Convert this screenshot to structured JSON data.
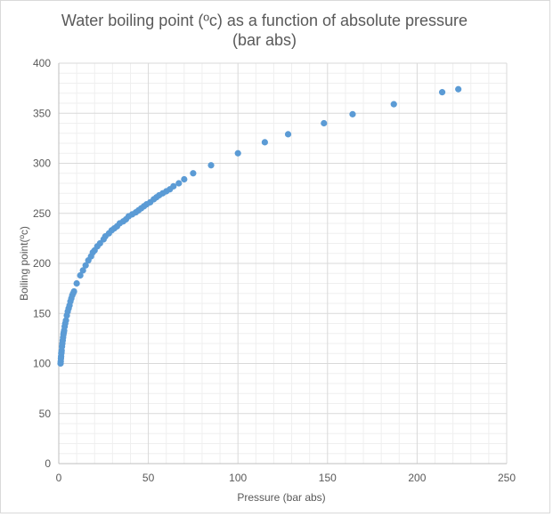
{
  "chart_data": {
    "type": "scatter",
    "title_lines": [
      "Water boiling point (ºc) as a function of absolute pressure",
      "(bar abs)"
    ],
    "xlabel": "Pressure (bar abs)",
    "ylabel": "Boiling point(ºc)",
    "xlim": [
      0,
      250
    ],
    "ylim": [
      0,
      400
    ],
    "xticks": [
      0,
      50,
      100,
      150,
      200,
      250
    ],
    "yticks": [
      0,
      50,
      100,
      150,
      200,
      250,
      300,
      350,
      400
    ],
    "grid": true,
    "marker_color": "#5b9bd5",
    "grid_major_color": "#d9d9d9",
    "grid_minor_color": "#efefef",
    "points": [
      [
        1.0,
        100
      ],
      [
        1.1,
        102
      ],
      [
        1.2,
        105
      ],
      [
        1.3,
        107
      ],
      [
        1.4,
        110
      ],
      [
        1.5,
        111
      ],
      [
        1.6,
        113
      ],
      [
        1.8,
        117
      ],
      [
        2.0,
        120
      ],
      [
        2.2,
        123
      ],
      [
        2.4,
        126
      ],
      [
        2.6,
        129
      ],
      [
        2.8,
        131
      ],
      [
        3.0,
        133
      ],
      [
        3.3,
        137
      ],
      [
        3.6,
        140
      ],
      [
        4.0,
        143
      ],
      [
        4.5,
        148
      ],
      [
        5.0,
        152
      ],
      [
        5.5,
        155
      ],
      [
        6.0,
        158
      ],
      [
        6.5,
        162
      ],
      [
        7.0,
        165
      ],
      [
        7.5,
        168
      ],
      [
        8.0,
        170
      ],
      [
        8.5,
        172
      ],
      [
        10,
        180
      ],
      [
        12,
        188
      ],
      [
        13.5,
        193
      ],
      [
        15,
        198
      ],
      [
        16.5,
        203
      ],
      [
        18,
        207
      ],
      [
        19,
        211
      ],
      [
        20,
        213
      ],
      [
        21.5,
        217
      ],
      [
        23,
        220
      ],
      [
        25,
        224
      ],
      [
        26,
        227
      ],
      [
        28,
        230
      ],
      [
        29.5,
        233
      ],
      [
        31,
        235
      ],
      [
        32.5,
        237
      ],
      [
        34,
        240
      ],
      [
        36,
        242
      ],
      [
        37.5,
        244
      ],
      [
        39,
        247
      ],
      [
        41,
        249
      ],
      [
        43,
        251
      ],
      [
        44.5,
        253
      ],
      [
        46,
        255
      ],
      [
        47.5,
        257
      ],
      [
        49,
        259
      ],
      [
        51,
        261
      ],
      [
        53,
        264
      ],
      [
        54.5,
        266
      ],
      [
        56,
        268
      ],
      [
        58,
        270
      ],
      [
        60,
        272
      ],
      [
        62,
        274
      ],
      [
        64,
        277
      ],
      [
        67,
        280
      ],
      [
        70,
        284
      ],
      [
        75,
        290
      ],
      [
        85,
        298
      ],
      [
        100,
        310
      ],
      [
        115,
        321
      ],
      [
        128,
        329
      ],
      [
        148,
        340
      ],
      [
        164,
        349
      ],
      [
        187,
        359
      ],
      [
        214,
        371
      ],
      [
        223,
        374
      ]
    ]
  }
}
